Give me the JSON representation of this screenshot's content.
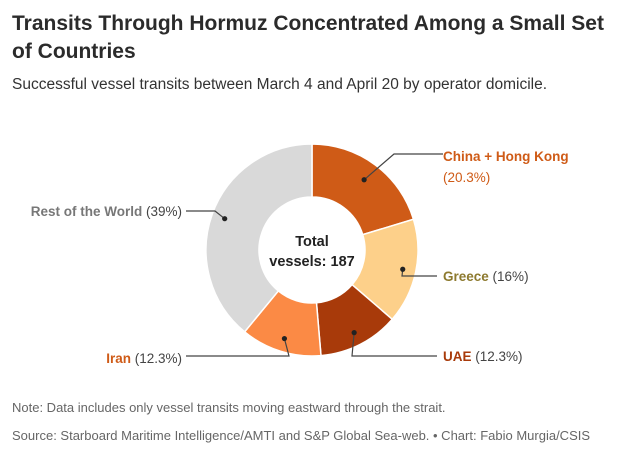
{
  "header": {
    "title": "Transits Through Hormuz Concentrated Among a Small Set of Countries",
    "subtitle": "Successful vessel transits between March 4 and April 20 by operator domicile."
  },
  "chart_data": {
    "type": "pie",
    "style": "donut",
    "center_label": [
      "Total",
      "vessels: 187"
    ],
    "total": 187,
    "slices": [
      {
        "label": "China + Hong Kong",
        "pct_label": "(20.3%)",
        "value": 20.3,
        "color": "#cf5b17",
        "label_color": "#cf5b17"
      },
      {
        "label": "Greece",
        "pct_label": "(16%)",
        "value": 16,
        "color": "#fdd08a",
        "label_color": "#8d7a2f"
      },
      {
        "label": "UAE",
        "pct_label": "(12.3%)",
        "value": 12.3,
        "color": "#a83a0a",
        "label_color": "#a83a0a"
      },
      {
        "label": "Iran",
        "pct_label": "(12.3%)",
        "value": 12.3,
        "color": "#fb8a45",
        "label_color": "#cf5b17"
      },
      {
        "label": "Rest of the World",
        "pct_label": "(39%)",
        "value": 39,
        "color": "#d9d9d9",
        "label_color": "#777777"
      }
    ]
  },
  "footer": {
    "note": "Note: Data includes only vessel transits moving eastward through the strait.",
    "source": "Source: Starboard Maritime Intelligence/AMTI and S&P Global Sea-web. • Chart: Fabio Murgia/CSIS"
  },
  "colors": {
    "pct_text": "#444444",
    "leader_line": "#444444"
  }
}
